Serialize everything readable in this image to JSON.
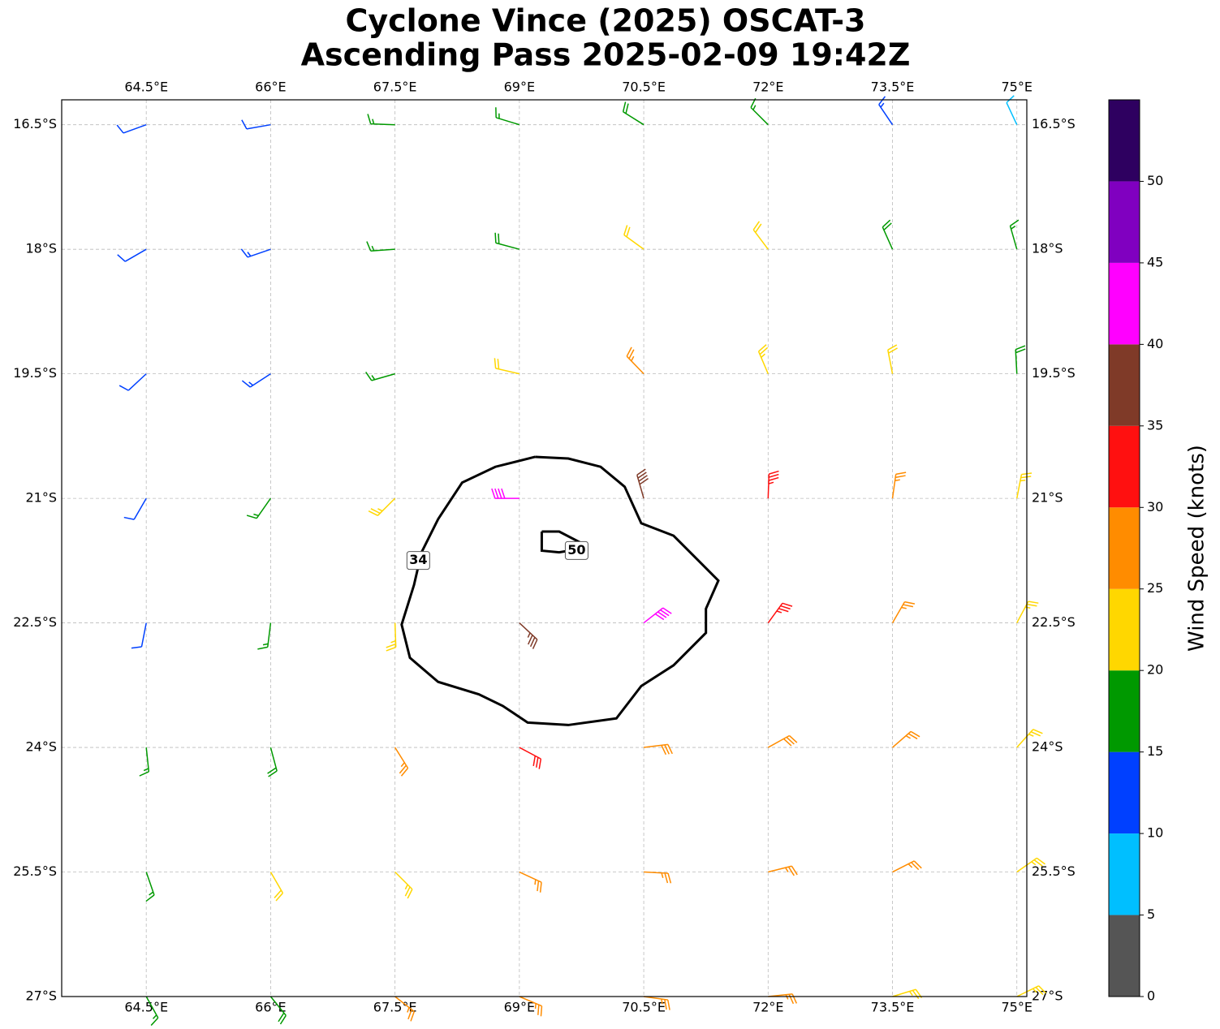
{
  "chart_data": {
    "type": "barb",
    "title": [
      "Cyclone Vince (2025) OSCAT-3",
      "Ascending Pass 2025-02-09 19:42Z"
    ],
    "xlim": [
      63.48,
      75.12
    ],
    "ylim": [
      -27,
      -16.2
    ],
    "xticks": [
      {
        "value": 64.5,
        "label": "64.5°E"
      },
      {
        "value": 66,
        "label": "66°E"
      },
      {
        "value": 67.5,
        "label": "67.5°E"
      },
      {
        "value": 69,
        "label": "69°E"
      },
      {
        "value": 70.5,
        "label": "70.5°E"
      },
      {
        "value": 72,
        "label": "72°E"
      },
      {
        "value": 73.5,
        "label": "73.5°E"
      },
      {
        "value": 75,
        "label": "75°E"
      }
    ],
    "yticks": [
      {
        "value": -16.5,
        "label": "16.5°S"
      },
      {
        "value": -18,
        "label": "18°S"
      },
      {
        "value": -19.5,
        "label": "19.5°S"
      },
      {
        "value": -21,
        "label": "21°S"
      },
      {
        "value": -22.5,
        "label": "22.5°S"
      },
      {
        "value": -24,
        "label": "24°S"
      },
      {
        "value": -25.5,
        "label": "25.5°S"
      },
      {
        "value": -27,
        "label": "27°S"
      }
    ],
    "grid": true,
    "barbs": {
      "lon": [
        64.5,
        66,
        67.5,
        69,
        70.5,
        72,
        73.5,
        75,
        64.5,
        66,
        67.5,
        69,
        70.5,
        72,
        73.5,
        75,
        64.5,
        66,
        67.5,
        69,
        70.5,
        72,
        73.5,
        75,
        64.5,
        66,
        67.5,
        69,
        70.5,
        72,
        73.5,
        75,
        64.5,
        66,
        67.5,
        69,
        70.5,
        72,
        73.5,
        75,
        64.5,
        66,
        67.5,
        69,
        70.5,
        72,
        73.5,
        75,
        64.5,
        66,
        67.5,
        69,
        70.5,
        72,
        73.5,
        75,
        64.5,
        66,
        67.5,
        69,
        70.5,
        72,
        73.5,
        75
      ],
      "lat": [
        -16.5,
        -16.5,
        -16.5,
        -16.5,
        -16.5,
        -16.5,
        -16.5,
        -16.5,
        -18,
        -18,
        -18,
        -18,
        -18,
        -18,
        -18,
        -18,
        -19.5,
        -19.5,
        -19.5,
        -19.5,
        -19.5,
        -19.5,
        -19.5,
        -19.5,
        -21,
        -21,
        -21,
        -21,
        -21,
        -21,
        -21,
        -21,
        -22.5,
        -22.5,
        -22.5,
        -22.5,
        -22.5,
        -22.5,
        -22.5,
        -22.5,
        -24,
        -24,
        -24,
        -24,
        -24,
        -24,
        -24,
        -24,
        -25.5,
        -25.5,
        -25.5,
        -25.5,
        -25.5,
        -25.5,
        -25.5,
        -25.5,
        -27,
        -27,
        -27,
        -27,
        -27,
        -27,
        -27,
        -27
      ],
      "speed": [
        12,
        12,
        17,
        17,
        18,
        17,
        13,
        8,
        12,
        13,
        17,
        19,
        22,
        22,
        18,
        16,
        12,
        13,
        17,
        22,
        26,
        23,
        21,
        18,
        11,
        16,
        23,
        42,
        38,
        33,
        27,
        23,
        11,
        17,
        24,
        37,
        41,
        33,
        26,
        24,
        16,
        18,
        27,
        32,
        29,
        28,
        26,
        24,
        16,
        22,
        24,
        27,
        27,
        26,
        26,
        24,
        17,
        18,
        26,
        27,
        27,
        27,
        24,
        23
      ],
      "direction": [
        250,
        260,
        272,
        287,
        302,
        315,
        326,
        335,
        240,
        251,
        266,
        285,
        306,
        323,
        336,
        344,
        227,
        237,
        254,
        283,
        316,
        337,
        349,
        357,
        210,
        215,
        225,
        270,
        344,
        2,
        8,
        11,
        191,
        187,
        178,
        133,
        52,
        36,
        30,
        28,
        174,
        165,
        148,
        118,
        83,
        61,
        49,
        42,
        161,
        150,
        135,
        115,
        93,
        76,
        63,
        55,
        151,
        141,
        128,
        113,
        98,
        84,
        73,
        64
      ]
    },
    "contours": [
      {
        "level": 34,
        "lon": [
          69.19,
          69.59,
          69.98,
          70.27,
          70.47,
          70.86,
          71.15,
          71.4,
          71.25,
          71.25,
          70.86,
          70.47,
          70.17,
          69.59,
          69.1,
          68.8,
          68.51,
          68.02,
          67.68,
          67.58,
          67.73,
          67.82,
          68.02,
          68.31,
          68.71,
          69.19
        ],
        "lat": [
          -20.5,
          -20.52,
          -20.62,
          -20.86,
          -21.3,
          -21.45,
          -21.74,
          -21.99,
          -22.33,
          -22.62,
          -23.01,
          -23.26,
          -23.65,
          -23.73,
          -23.7,
          -23.5,
          -23.36,
          -23.21,
          -22.92,
          -22.52,
          -22.04,
          -21.65,
          -21.25,
          -20.81,
          -20.62,
          -20.5
        ]
      },
      {
        "level": 50,
        "lon": [
          69.27,
          69.48,
          69.73,
          69.78,
          69.48,
          69.27,
          69.27
        ],
        "lat": [
          -21.4,
          -21.4,
          -21.53,
          -21.6,
          -21.65,
          -21.63,
          -21.4
        ]
      }
    ],
    "colorbar": {
      "label": "Wind Speed (knots)",
      "bounds": [
        0,
        5,
        10,
        15,
        20,
        25,
        30,
        35,
        40,
        45,
        50,
        55
      ],
      "colors": [
        "#555555",
        "#00bfff",
        "#0040ff",
        "#009900",
        "#ffd700",
        "#ff8c00",
        "#ff1010",
        "#7f3a28",
        "#ff00ff",
        "#8000c0",
        "#2e0060"
      ],
      "ticks": [
        0,
        5,
        10,
        15,
        20,
        25,
        30,
        35,
        40,
        45,
        50
      ]
    }
  }
}
